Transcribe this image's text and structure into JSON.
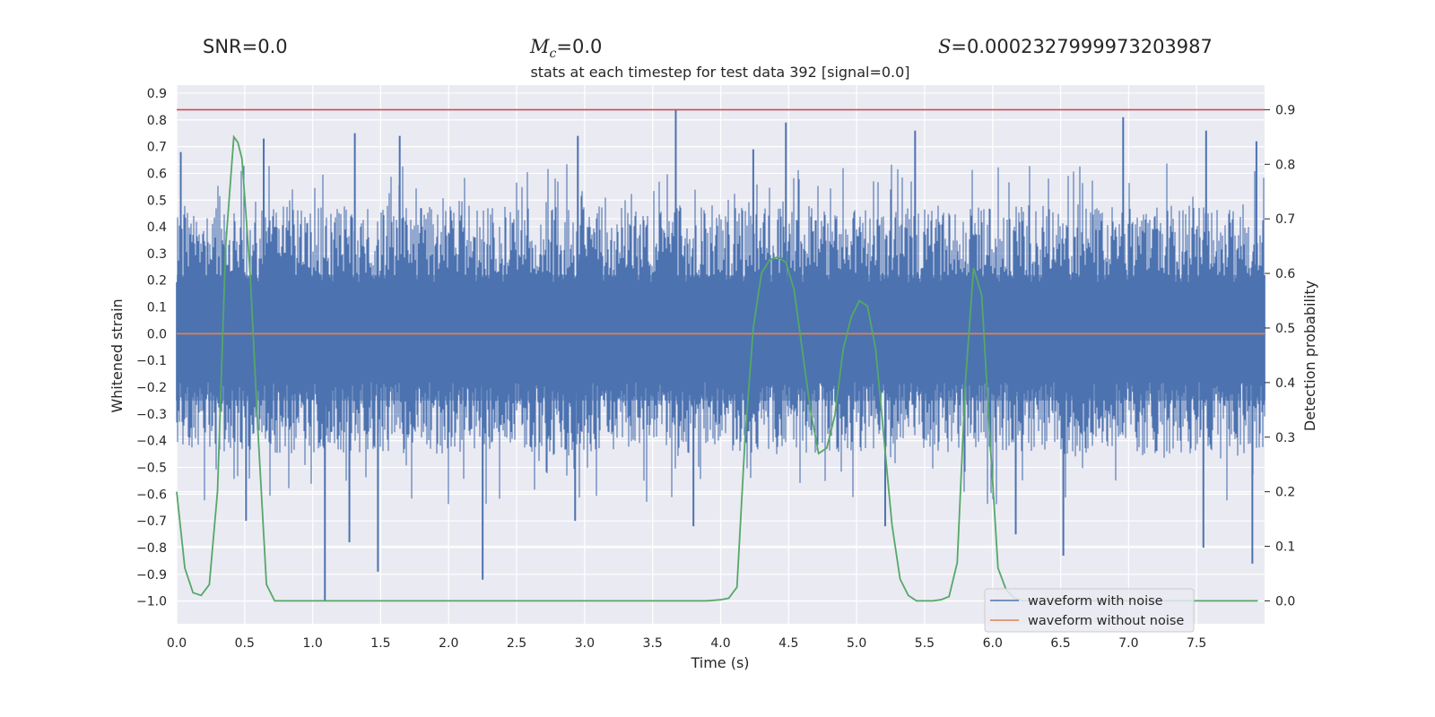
{
  "stats": {
    "snr_label": "SNR=",
    "snr_value": "0.0",
    "mc_symbol": "M",
    "mc_sub": "c",
    "mc_value": "=0.0",
    "s_symbol": "S",
    "s_value": "=0.0002327999973203987"
  },
  "colors": {
    "background": "#eaeaf2",
    "grid": "#ffffff",
    "noise": "#4c72b0",
    "clean": "#dd8452",
    "probability": "#55a868",
    "threshold": "#c44e52"
  },
  "chart_data": {
    "type": "line",
    "title": "stats at each timestep for test data 392 [signal=0.0]",
    "xlabel": "Time (s)",
    "ylabel": "Whitened strain",
    "y2label": "Detection probability",
    "xlim": [
      0.0,
      8.0
    ],
    "ylim": [
      -1.085,
      0.93
    ],
    "y2lim": [
      -0.042,
      0.945
    ],
    "xticks": [
      "0.0",
      "0.5",
      "1.0",
      "1.5",
      "2.0",
      "2.5",
      "3.0",
      "3.5",
      "4.0",
      "4.5",
      "5.0",
      "5.5",
      "6.0",
      "6.5",
      "7.0",
      "7.5"
    ],
    "yticks": [
      "0.9",
      "0.8",
      "0.7",
      "0.6",
      "0.5",
      "0.4",
      "0.3",
      "0.2",
      "0.1",
      "0.0",
      "-0.1",
      "-0.2",
      "-0.3",
      "-0.4",
      "-0.5",
      "-0.6",
      "-0.7",
      "-0.8",
      "-0.9",
      "-1.0"
    ],
    "y2ticks": [
      "0.9",
      "0.8",
      "0.7",
      "0.6",
      "0.5",
      "0.4",
      "0.3",
      "0.2",
      "0.1",
      "0.0"
    ],
    "threshold": 0.9,
    "legend": {
      "position": "bottom-right",
      "entries": [
        "waveform with noise",
        "waveform without noise"
      ]
    },
    "series": [
      {
        "name": "waveform with noise",
        "axis": "left",
        "kind": "noise",
        "envelope": {
          "typical_max": 0.48,
          "typical_min": -0.45,
          "peak_max": 0.84,
          "peak_min": -1.0
        },
        "spikes": [
          {
            "t": 3.67,
            "y": 0.84
          },
          {
            "t": 4.48,
            "y": 0.79
          },
          {
            "t": 6.96,
            "y": 0.81
          },
          {
            "t": 1.31,
            "y": 0.75
          },
          {
            "t": 1.64,
            "y": 0.74
          },
          {
            "t": 0.64,
            "y": 0.73
          },
          {
            "t": 2.95,
            "y": 0.74
          },
          {
            "t": 5.43,
            "y": 0.76
          },
          {
            "t": 7.57,
            "y": 0.76
          },
          {
            "t": 7.94,
            "y": 0.72
          },
          {
            "t": 4.24,
            "y": 0.69
          },
          {
            "t": 0.03,
            "y": 0.68
          },
          {
            "t": 1.09,
            "y": -1.0
          },
          {
            "t": 2.25,
            "y": -0.92
          },
          {
            "t": 1.48,
            "y": -0.89
          },
          {
            "t": 6.52,
            "y": -0.83
          },
          {
            "t": 7.91,
            "y": -0.86
          },
          {
            "t": 7.55,
            "y": -0.8
          },
          {
            "t": 1.27,
            "y": -0.78
          },
          {
            "t": 0.51,
            "y": -0.7
          },
          {
            "t": 2.93,
            "y": -0.7
          },
          {
            "t": 3.8,
            "y": -0.72
          },
          {
            "t": 6.17,
            "y": -0.75
          },
          {
            "t": 5.21,
            "y": -0.72
          }
        ]
      },
      {
        "name": "waveform without noise",
        "axis": "left",
        "x": [
          0.0,
          8.0
        ],
        "y": [
          0.0,
          0.0
        ]
      },
      {
        "name": "detection probability",
        "axis": "right",
        "x": [
          0.0,
          0.06,
          0.12,
          0.18,
          0.24,
          0.3,
          0.36,
          0.42,
          0.45,
          0.48,
          0.54,
          0.6,
          0.66,
          0.72,
          0.78,
          1.0,
          2.0,
          3.0,
          3.9,
          4.0,
          4.06,
          4.12,
          4.18,
          4.24,
          4.3,
          4.36,
          4.42,
          4.48,
          4.54,
          4.6,
          4.66,
          4.72,
          4.78,
          4.84,
          4.9,
          4.96,
          5.02,
          5.08,
          5.14,
          5.2,
          5.26,
          5.32,
          5.38,
          5.44,
          5.5,
          5.56,
          5.62,
          5.68,
          5.74,
          5.8,
          5.86,
          5.92,
          5.98,
          6.04,
          6.1,
          6.16,
          6.22,
          6.28,
          6.34,
          6.4,
          6.46,
          6.52,
          7.0,
          7.5,
          7.95
        ],
        "y": [
          0.2,
          0.06,
          0.015,
          0.01,
          0.03,
          0.2,
          0.65,
          0.85,
          0.84,
          0.81,
          0.6,
          0.3,
          0.03,
          0.0,
          0.0,
          0.0,
          0.0,
          0.0,
          0.0,
          0.002,
          0.005,
          0.025,
          0.3,
          0.5,
          0.6,
          0.625,
          0.63,
          0.62,
          0.57,
          0.46,
          0.35,
          0.27,
          0.28,
          0.34,
          0.46,
          0.52,
          0.55,
          0.54,
          0.46,
          0.3,
          0.14,
          0.04,
          0.01,
          0.0,
          0.0,
          0.0,
          0.002,
          0.008,
          0.07,
          0.4,
          0.61,
          0.56,
          0.3,
          0.06,
          0.02,
          0.005,
          0.0,
          0.0,
          0.0,
          0.0,
          0.0,
          0.0,
          0.0,
          0.0,
          0.0
        ]
      }
    ]
  }
}
